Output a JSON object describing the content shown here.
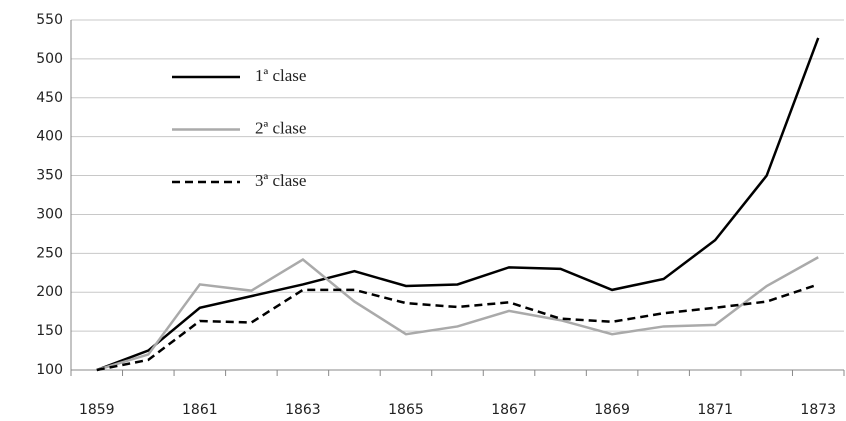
{
  "chart_data": {
    "type": "line",
    "categories": [
      "1859",
      null,
      "1861",
      null,
      "1863",
      null,
      "1865",
      null,
      "1867",
      null,
      "1869",
      null,
      "1871",
      null,
      "1873"
    ],
    "series": [
      {
        "name": "1ª clase",
        "color": "#000000",
        "line_style": "solid",
        "values": [
          100,
          125,
          180,
          195,
          210,
          227,
          208,
          210,
          232,
          230,
          203,
          217,
          267,
          350,
          527
        ]
      },
      {
        "name": "2ª clase",
        "color": "#aaaaaa",
        "line_style": "solid",
        "values": [
          100,
          120,
          210,
          202,
          242,
          188,
          146,
          156,
          176,
          164,
          146,
          156,
          158,
          208,
          245
        ]
      },
      {
        "name": "3ª clase",
        "color": "#000000",
        "line_style": "dashed",
        "values": [
          100,
          113,
          163,
          161,
          203,
          203,
          186,
          181,
          187,
          166,
          162,
          173,
          180,
          188,
          210
        ]
      }
    ],
    "ylim": [
      100,
      550
    ],
    "yticks": [
      100,
      150,
      200,
      250,
      300,
      350,
      400,
      450,
      500,
      550
    ],
    "grid": true,
    "legend": "top-left"
  }
}
